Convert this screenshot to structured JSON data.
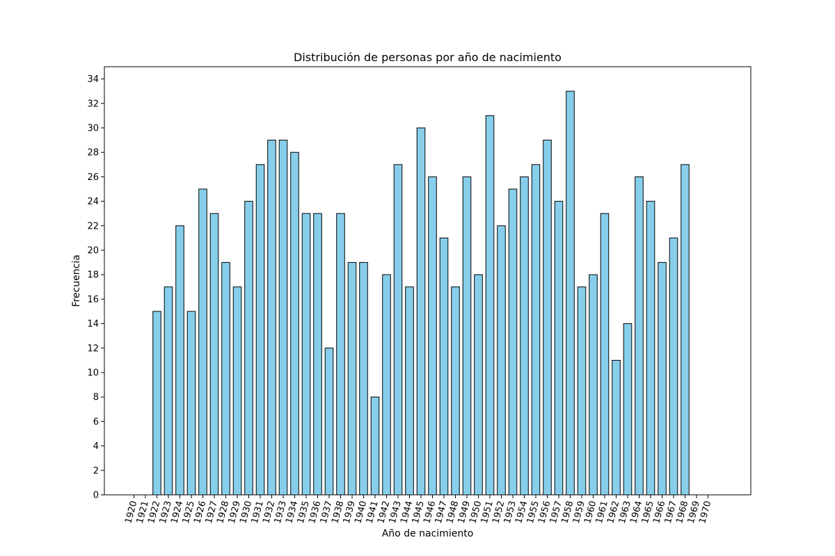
{
  "chart_data": {
    "type": "bar",
    "title": "Distribución de personas por año de nacimiento",
    "xlabel": "Año de nacimiento",
    "ylabel": "Frecuencia",
    "ylim": [
      0,
      35
    ],
    "yticks": [
      0,
      2,
      4,
      6,
      8,
      10,
      12,
      14,
      16,
      18,
      20,
      22,
      24,
      26,
      28,
      30,
      32,
      34
    ],
    "xticks": [
      "1920",
      "1921",
      "1922",
      "1923",
      "1924",
      "1925",
      "1926",
      "1927",
      "1928",
      "1929",
      "1930",
      "1931",
      "1932",
      "1933",
      "1934",
      "1935",
      "1936",
      "1937",
      "1938",
      "1939",
      "1940",
      "1941",
      "1942",
      "1943",
      "1944",
      "1945",
      "1946",
      "1947",
      "1948",
      "1949",
      "1950",
      "1951",
      "1952",
      "1953",
      "1954",
      "1955",
      "1956",
      "1957",
      "1958",
      "1959",
      "1960",
      "1961",
      "1962",
      "1963",
      "1964",
      "1965",
      "1966",
      "1967",
      "1968",
      "1969",
      "1970"
    ],
    "categories": [
      "1920",
      "1921",
      "1922",
      "1923",
      "1924",
      "1925",
      "1926",
      "1927",
      "1928",
      "1929",
      "1930",
      "1931",
      "1932",
      "1933",
      "1934",
      "1935",
      "1936",
      "1937",
      "1938",
      "1939",
      "1940",
      "1941",
      "1942",
      "1943",
      "1944",
      "1945",
      "1946",
      "1947",
      "1948",
      "1949",
      "1950",
      "1951",
      "1952",
      "1953",
      "1954",
      "1955",
      "1956",
      "1957",
      "1958",
      "1959",
      "1960",
      "1961",
      "1962",
      "1963",
      "1964",
      "1965",
      "1966",
      "1967",
      "1968",
      "1969"
    ],
    "values": [
      0,
      0,
      15,
      17,
      22,
      15,
      25,
      23,
      19,
      17,
      24,
      27,
      29,
      29,
      28,
      23,
      23,
      12,
      23,
      19,
      19,
      8,
      18,
      27,
      17,
      30,
      26,
      21,
      17,
      26,
      18,
      31,
      22,
      25,
      26,
      27,
      29,
      24,
      33,
      17,
      18,
      23,
      11,
      14,
      26,
      24,
      19,
      21,
      27,
      0
    ],
    "bar_color": "#87ceeb",
    "edge_color": "#000000",
    "grid": false,
    "legend": false
  }
}
